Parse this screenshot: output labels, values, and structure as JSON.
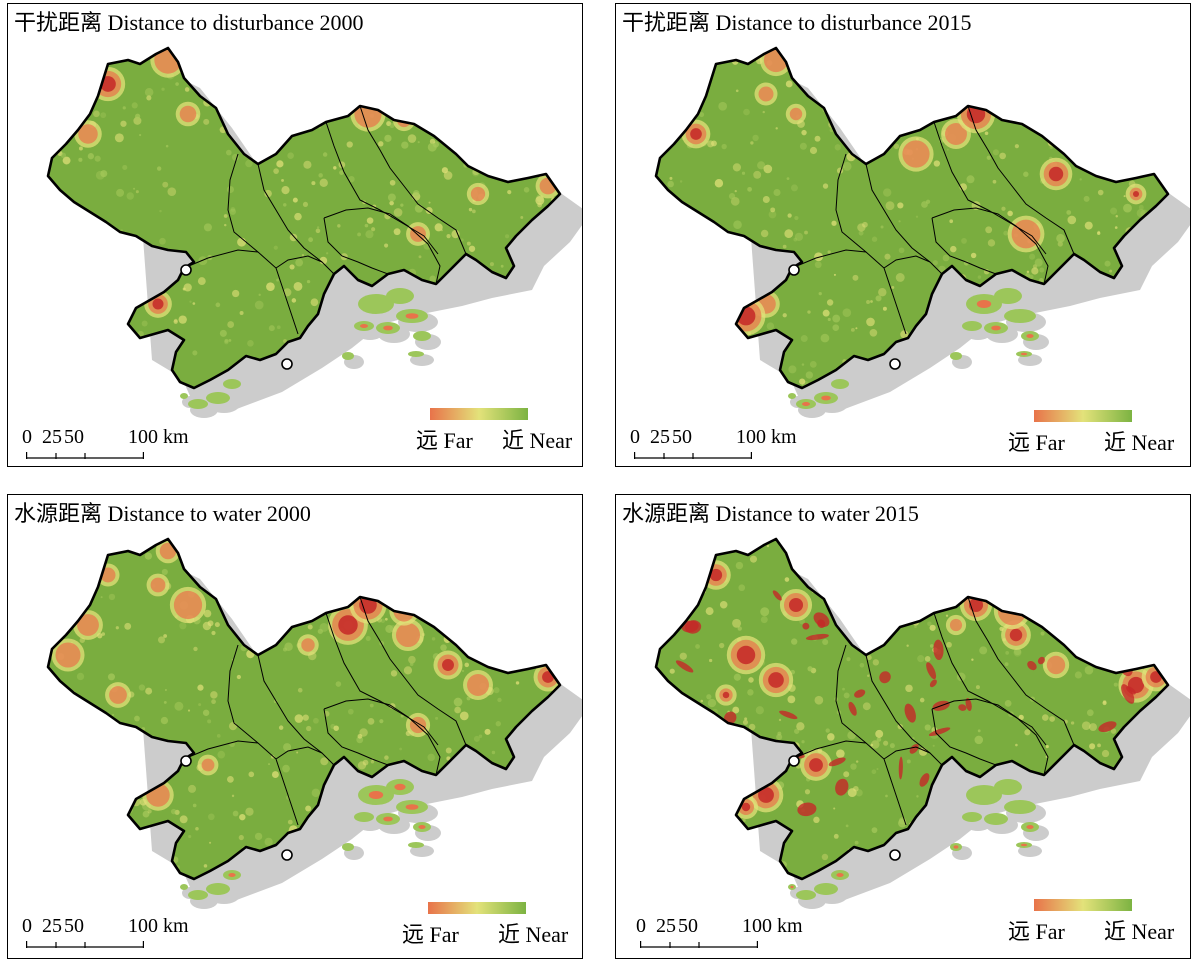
{
  "colors": {
    "far": "#e8734a",
    "mid": "#e3e27a",
    "near": "#7cb342",
    "map_base": "#7aad3f",
    "boundary": "#000000",
    "shadow": "#cccccc"
  },
  "scale_bar": {
    "label_0": "0",
    "label_25": "25",
    "label_50": "50",
    "label_100": "100 km"
  },
  "legend": {
    "far_label": "远 Far",
    "near_label": "近 Near"
  },
  "panels": [
    {
      "title": "干扰距离 Distance to disturbance 2000",
      "far_intensity": 0.35,
      "red_intensity": 0.25
    },
    {
      "title": "干扰距离 Distance to disturbance 2015",
      "far_intensity": 0.25,
      "red_intensity": 0.3
    },
    {
      "title": "水源距离 Distance to water 2000",
      "far_intensity": 0.5,
      "red_intensity": 0.4
    },
    {
      "title": "水源距离 Distance to water 2015",
      "far_intensity": 0.55,
      "red_intensity": 0.95
    }
  ]
}
